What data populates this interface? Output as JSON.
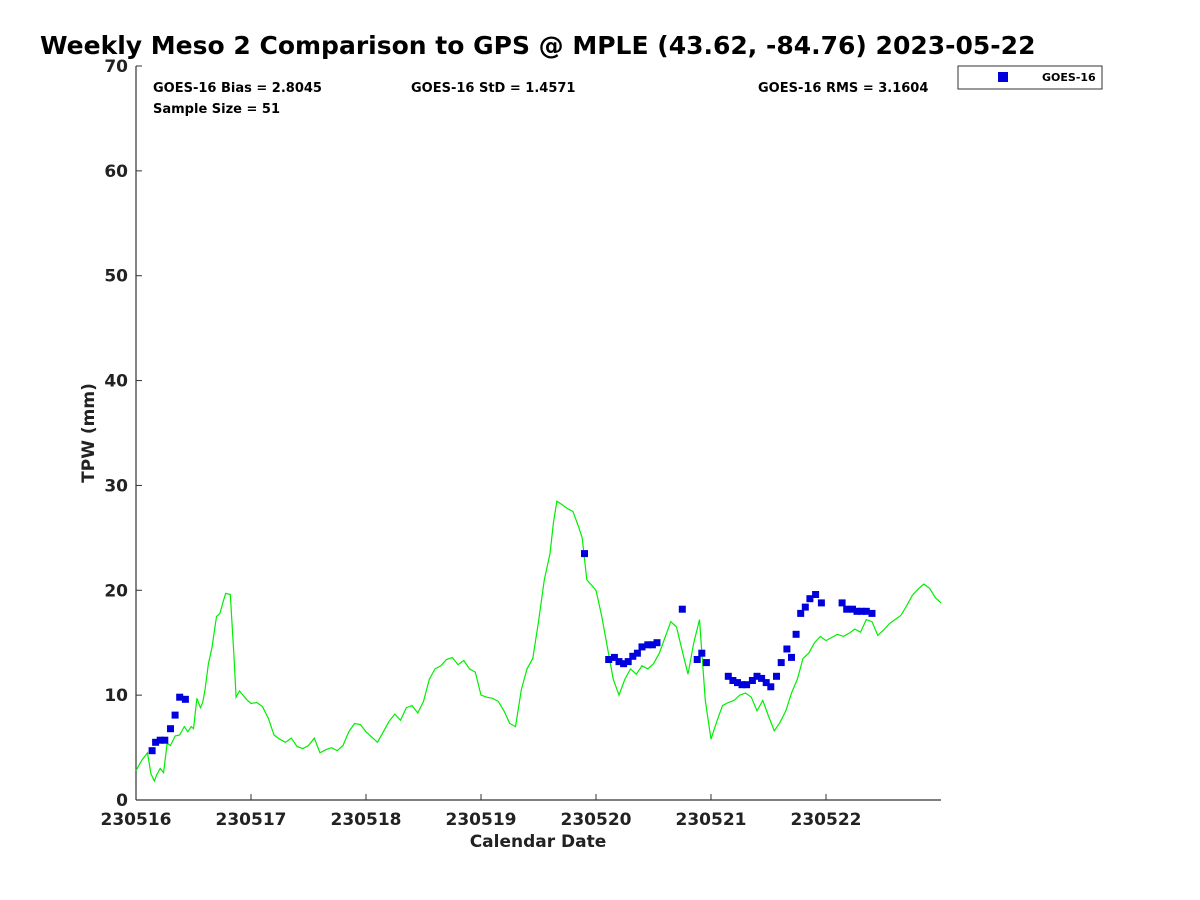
{
  "chart_data": {
    "type": "scatter",
    "title": "Weekly Meso 2 Comparison to GPS @ MPLE (43.62, -84.76) 2023-05-22",
    "xlabel": "Calendar Date",
    "ylabel": "TPW (mm)",
    "ylim": [
      0,
      70
    ],
    "xlim": [
      0,
      7
    ],
    "yticks": [
      0,
      10,
      20,
      30,
      40,
      50,
      60,
      70
    ],
    "xticks": [
      {
        "value": 0,
        "label": "230516"
      },
      {
        "value": 1,
        "label": "230517"
      },
      {
        "value": 2,
        "label": "230518"
      },
      {
        "value": 3,
        "label": "230519"
      },
      {
        "value": 4,
        "label": "230520"
      },
      {
        "value": 5,
        "label": "230521"
      },
      {
        "value": 6,
        "label": "230522"
      }
    ],
    "grid": false,
    "legend_position": "outside-top-right",
    "stats": {
      "bias": "GOES-16 Bias = 2.8045",
      "std": "GOES-16 StD = 1.4571",
      "rms": "GOES-16 RMS = 3.1604",
      "sample": "Sample Size = 51"
    },
    "series": [
      {
        "name": "GOES-16",
        "kind": "markers",
        "color": "#0000dd",
        "x": [
          0.14,
          0.17,
          0.21,
          0.25,
          0.3,
          0.34,
          0.38,
          0.43,
          3.9,
          4.11,
          4.16,
          4.2,
          4.24,
          4.28,
          4.32,
          4.36,
          4.4,
          4.45,
          4.49,
          4.53,
          4.75,
          4.88,
          4.92,
          4.96,
          5.15,
          5.19,
          5.23,
          5.27,
          5.31,
          5.36,
          5.4,
          5.44,
          5.48,
          5.52,
          5.57,
          5.61,
          5.66,
          5.7,
          5.74,
          5.78,
          5.82,
          5.86,
          5.91,
          5.96,
          6.14,
          6.18,
          6.23,
          6.27,
          6.31,
          6.35,
          6.4
        ],
        "y": [
          4.7,
          5.5,
          5.7,
          5.7,
          6.8,
          8.1,
          9.8,
          9.6,
          23.5,
          13.4,
          13.6,
          13.2,
          13.0,
          13.2,
          13.7,
          14.0,
          14.6,
          14.8,
          14.8,
          15.0,
          18.2,
          13.4,
          14.0,
          13.1,
          11.8,
          11.4,
          11.2,
          11.0,
          11.0,
          11.4,
          11.8,
          11.6,
          11.2,
          10.8,
          11.8,
          13.1,
          14.4,
          13.6,
          15.8,
          17.8,
          18.4,
          19.2,
          19.6,
          18.8,
          18.8,
          18.2,
          18.2,
          18.0,
          18.0,
          18.0,
          17.8
        ]
      },
      {
        "name": "",
        "kind": "line",
        "color": "#00ee00",
        "x": [
          0,
          0.05,
          0.1,
          0.13,
          0.16,
          0.18,
          0.21,
          0.24,
          0.27,
          0.3,
          0.34,
          0.38,
          0.42,
          0.45,
          0.48,
          0.5,
          0.53,
          0.56,
          0.58,
          0.6,
          0.63,
          0.66,
          0.7,
          0.73,
          0.76,
          0.78,
          0.82,
          0.85,
          0.87,
          0.9,
          0.93,
          0.96,
          1.0,
          1.05,
          1.1,
          1.15,
          1.2,
          1.25,
          1.3,
          1.35,
          1.4,
          1.45,
          1.5,
          1.55,
          1.6,
          1.65,
          1.7,
          1.75,
          1.8,
          1.85,
          1.9,
          1.95,
          2.0,
          2.05,
          2.1,
          2.15,
          2.2,
          2.25,
          2.3,
          2.35,
          2.4,
          2.45,
          2.5,
          2.55,
          2.6,
          2.65,
          2.7,
          2.75,
          2.8,
          2.85,
          2.9,
          2.95,
          3.0,
          3.05,
          3.1,
          3.15,
          3.2,
          3.25,
          3.3,
          3.35,
          3.4,
          3.45,
          3.5,
          3.55,
          3.6,
          3.63,
          3.66,
          3.7,
          3.75,
          3.8,
          3.85,
          3.88,
          3.92,
          3.96,
          4.0,
          4.05,
          4.1,
          4.15,
          4.2,
          4.25,
          4.3,
          4.35,
          4.4,
          4.45,
          4.5,
          4.55,
          4.6,
          4.65,
          4.7,
          4.75,
          4.8,
          4.85,
          4.9,
          4.95,
          5.0,
          5.05,
          5.1,
          5.15,
          5.2,
          5.25,
          5.3,
          5.35,
          5.4,
          5.45,
          5.5,
          5.55,
          5.6,
          5.65,
          5.7,
          5.75,
          5.8,
          5.85,
          5.9,
          5.95,
          6.0,
          6.05,
          6.1,
          6.15,
          6.2,
          6.25,
          6.3,
          6.35,
          6.4,
          6.45,
          6.5,
          6.55,
          6.6,
          6.65,
          6.7,
          6.75,
          6.8,
          6.85,
          6.9,
          6.95,
          7.0
        ],
        "y": [
          2.8,
          3.8,
          4.5,
          2.5,
          1.8,
          2.4,
          3.0,
          2.6,
          5.4,
          5.2,
          6.1,
          6.2,
          7.0,
          6.5,
          7.0,
          6.8,
          9.7,
          8.8,
          9.3,
          10.5,
          13.0,
          14.5,
          17.5,
          17.8,
          19.0,
          19.7,
          19.6,
          14.0,
          9.8,
          10.4,
          10.0,
          9.6,
          9.2,
          9.3,
          8.9,
          7.8,
          6.2,
          5.8,
          5.5,
          5.9,
          5.1,
          4.9,
          5.2,
          5.9,
          4.5,
          4.8,
          5.0,
          4.7,
          5.2,
          6.5,
          7.3,
          7.2,
          6.5,
          6.0,
          5.5,
          6.5,
          7.5,
          8.2,
          7.6,
          8.8,
          9.0,
          8.3,
          9.4,
          11.5,
          12.5,
          12.8,
          13.4,
          13.6,
          12.9,
          13.3,
          12.5,
          12.2,
          10.0,
          9.8,
          9.7,
          9.4,
          8.5,
          7.3,
          7.0,
          10.5,
          12.5,
          13.5,
          17.0,
          21.0,
          23.5,
          26.5,
          28.5,
          28.2,
          27.8,
          27.5,
          26.0,
          25.0,
          21.0,
          20.5,
          20.0,
          17.5,
          14.5,
          11.5,
          10.0,
          11.5,
          12.5,
          12.0,
          12.8,
          12.5,
          13.0,
          14.0,
          15.5,
          17.0,
          16.5,
          14.2,
          12.0,
          15.0,
          17.2,
          9.5,
          5.8,
          7.5,
          9.0,
          9.3,
          9.5,
          10.0,
          10.2,
          9.8,
          8.5,
          9.5,
          8.0,
          6.6,
          7.4,
          8.5,
          10.2,
          11.5,
          13.5,
          14.0,
          15.0,
          15.6,
          15.2,
          15.5,
          15.8,
          15.6,
          15.9,
          16.3,
          16.0,
          17.2,
          17.0,
          15.7,
          16.2,
          16.8,
          17.2,
          17.6,
          18.5,
          19.5,
          20.1,
          20.6,
          20.2,
          19.3,
          18.8
        ]
      }
    ]
  }
}
